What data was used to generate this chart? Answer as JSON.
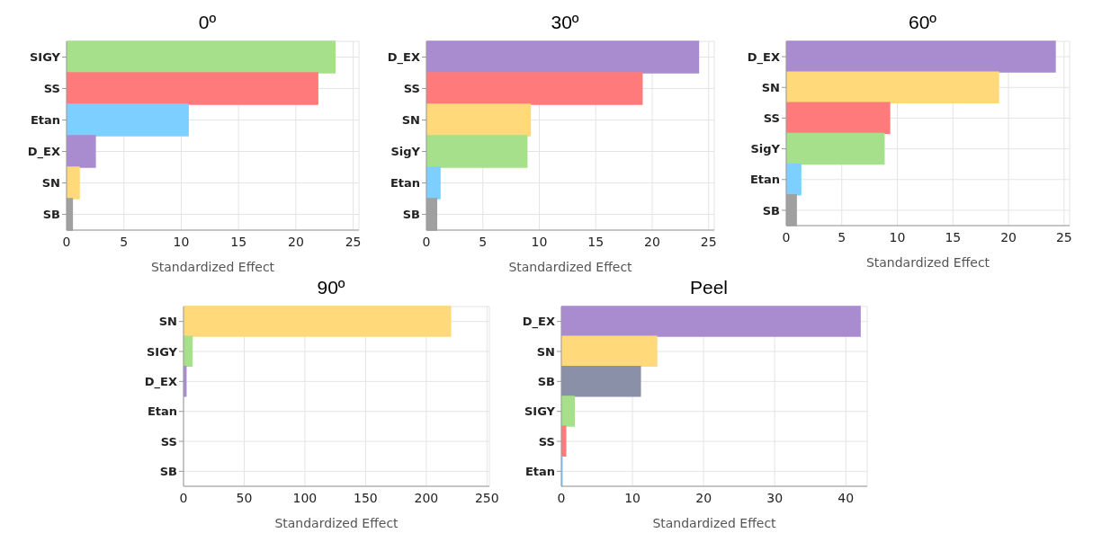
{
  "chart_data": [
    {
      "type": "bar",
      "orientation": "horizontal",
      "title": "0º",
      "xlabel": "Standardized Effect",
      "categories": [
        "SIGY",
        "SS",
        "Etan",
        "D_EX",
        "SN",
        "SB"
      ],
      "values": [
        23.4,
        21.9,
        10.6,
        2.5,
        1.1,
        0.5
      ],
      "colors": [
        "#a6e08a",
        "#ff7b7b",
        "#7dcfff",
        "#a98cd0",
        "#ffd97a",
        "#a0a0a0"
      ],
      "xlim": [
        0,
        25.5
      ],
      "xticks": [
        0,
        5,
        10,
        15,
        20,
        25
      ],
      "grid": true
    },
    {
      "type": "bar",
      "orientation": "horizontal",
      "title": "30º",
      "xlabel": "Standardized Effect",
      "categories": [
        "D_EX",
        "SS",
        "SN",
        "SigY",
        "Etan",
        "SB"
      ],
      "values": [
        24.1,
        19.1,
        9.2,
        8.9,
        1.2,
        0.9
      ],
      "colors": [
        "#a98cd0",
        "#ff7b7b",
        "#ffd97a",
        "#a6e08a",
        "#7dcfff",
        "#a0a0a0"
      ],
      "xlim": [
        0,
        25.5
      ],
      "xticks": [
        0,
        5,
        10,
        15,
        20,
        25
      ],
      "grid": true
    },
    {
      "type": "bar",
      "orientation": "horizontal",
      "title": "60º",
      "xlabel": "Standardized Effect",
      "categories": [
        "D_EX",
        "SN",
        "SS",
        "SigY",
        "Etan",
        "SB"
      ],
      "values": [
        24.2,
        19.1,
        9.3,
        8.8,
        1.3,
        0.9
      ],
      "colors": [
        "#a98cd0",
        "#ffd97a",
        "#ff7b7b",
        "#a6e08a",
        "#7dcfff",
        "#a0a0a0"
      ],
      "xlim": [
        0,
        25.5
      ],
      "xticks": [
        0,
        5,
        10,
        15,
        20,
        25
      ],
      "grid": true
    },
    {
      "type": "bar",
      "orientation": "horizontal",
      "title": "90º",
      "xlabel": "Standardized Effect",
      "categories": [
        "SN",
        "SIGY",
        "D_EX",
        "Etan",
        "SS",
        "SB"
      ],
      "values": [
        220,
        7,
        2,
        0,
        0,
        0
      ],
      "colors": [
        "#ffd97a",
        "#a6e08a",
        "#a98cd0",
        "#7dcfff",
        "#ff7b7b",
        "#a0a0a0"
      ],
      "xlim": [
        0,
        252
      ],
      "xticks": [
        0,
        50,
        100,
        150,
        200,
        250
      ],
      "grid": true
    },
    {
      "type": "bar",
      "orientation": "horizontal",
      "title": "Peel",
      "xlabel": "Standardized Effect",
      "categories": [
        "D_EX",
        "SN",
        "SB",
        "SIGY",
        "SS",
        "Etan"
      ],
      "values": [
        42,
        13.4,
        11.1,
        1.8,
        0.6,
        0.1
      ],
      "colors": [
        "#a98cd0",
        "#ffd97a",
        "#8a90a8",
        "#a6e08a",
        "#ff7b7b",
        "#7dcfff"
      ],
      "xlim": [
        0,
        43
      ],
      "xticks": [
        0,
        10,
        20,
        30,
        40
      ],
      "grid": true
    }
  ]
}
